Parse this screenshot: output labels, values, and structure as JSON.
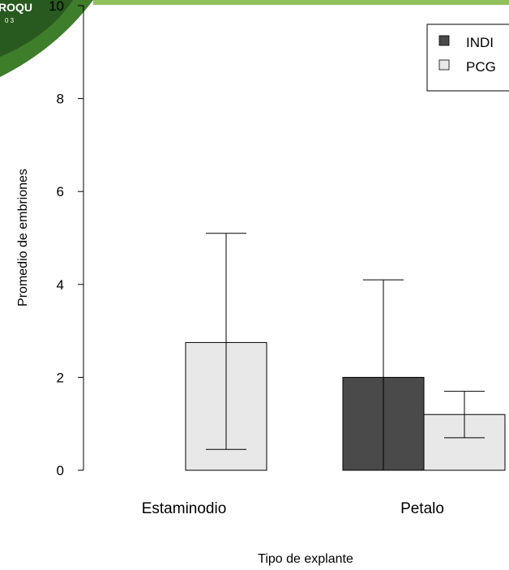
{
  "colors": {
    "INDI": "#4a4a4a",
    "PCG": "#e8e8e8",
    "logo_green_dark": "#1f4a1a",
    "logo_green": "#3e7d2a",
    "top_band": "#8fc15a"
  },
  "logo": {
    "text": "ROQU",
    "subtext": "0 3",
    "icon": "green-globe-logo"
  },
  "chart_data": {
    "type": "bar",
    "title": "",
    "xlabel": "Tipo de explante",
    "ylabel": "Promedio de embriones",
    "ylim": [
      0,
      10
    ],
    "y_ticks": [
      0,
      2,
      4,
      6,
      8,
      10
    ],
    "categories": [
      "Estaminodio",
      "Petalo"
    ],
    "series": [
      {
        "name": "INDI",
        "color": "#4a4a4a",
        "values": [
          0,
          2.0
        ],
        "error_low": [
          null,
          0.0
        ],
        "error_high": [
          null,
          4.1
        ]
      },
      {
        "name": "PCG",
        "color": "#e8e8e8",
        "values": [
          2.75,
          1.2
        ],
        "error_low": [
          0.45,
          0.7
        ],
        "error_high": [
          5.1,
          1.7
        ]
      }
    ],
    "legend": {
      "position": "top-right",
      "labels": [
        "INDI",
        "PCG"
      ]
    },
    "grid": false
  }
}
